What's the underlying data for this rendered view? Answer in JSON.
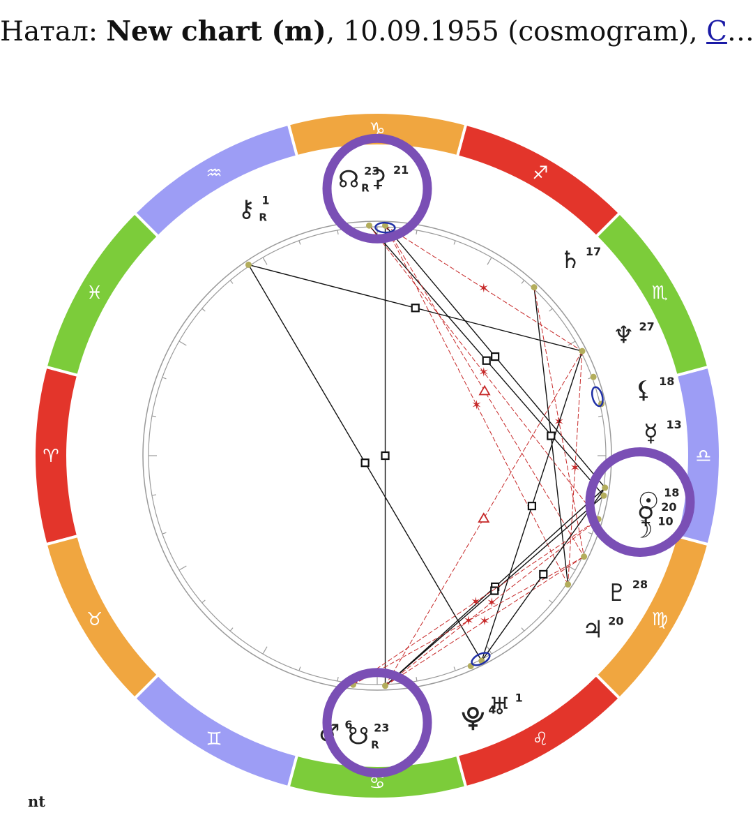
{
  "header": {
    "prefix": "Натал: ",
    "chart_name": "New chart (m)",
    "details": ", 10.09.1955 (cosmogram), ",
    "link": "С",
    "ellipsis": "…"
  },
  "footer": {
    "text": "nt"
  },
  "colors": {
    "fire": "#e3352b",
    "earth": "#f0a640",
    "air": "#9d9df5",
    "water": "#7ccc3a",
    "highlight": "#7a4fb5",
    "aspect_tense": "#111111",
    "aspect_harmonic": "#c62828",
    "planet_dot": "#b3ad5c",
    "conjunction_oval": "#1f2fa6"
  },
  "zodiac": [
    {
      "sign": "Aries",
      "glyph": "♈",
      "element": "fire",
      "angle": 180
    },
    {
      "sign": "Taurus",
      "glyph": "♉",
      "element": "earth",
      "angle": 210
    },
    {
      "sign": "Gemini",
      "glyph": "♊",
      "element": "air",
      "angle": 240
    },
    {
      "sign": "Cancer",
      "glyph": "♋",
      "element": "water",
      "angle": 270
    },
    {
      "sign": "Leo",
      "glyph": "♌",
      "element": "fire",
      "angle": 300
    },
    {
      "sign": "Virgo",
      "glyph": "♍",
      "element": "earth",
      "angle": 330
    },
    {
      "sign": "Libra",
      "glyph": "♎",
      "element": "air",
      "angle": 0
    },
    {
      "sign": "Scorpio",
      "glyph": "♏",
      "element": "water",
      "angle": 30
    },
    {
      "sign": "Sagittarius",
      "glyph": "♐",
      "element": "fire",
      "angle": 60
    },
    {
      "sign": "Capricorn",
      "glyph": "♑",
      "element": "earth",
      "angle": 90
    },
    {
      "sign": "Aquarius",
      "glyph": "♒",
      "element": "air",
      "angle": 120
    },
    {
      "sign": "Pisces",
      "glyph": "♓",
      "element": "water",
      "angle": 150
    }
  ],
  "planets": [
    {
      "name": "north-node",
      "glyph": "☊",
      "degree": "23",
      "retro": "R",
      "angle": 92,
      "label_angle": 95
    },
    {
      "name": "ceres",
      "glyph": "⚳",
      "degree": "21",
      "retro": "",
      "angle": 88,
      "label_angle": 89
    },
    {
      "name": "chiron",
      "glyph": "⚷",
      "degree": "1",
      "retro": "R",
      "angle": 124,
      "label_angle": 117
    },
    {
      "name": "saturn",
      "glyph": "♄",
      "degree": "17",
      "retro": "",
      "angle": 47,
      "label_angle": 45
    },
    {
      "name": "neptune",
      "glyph": "♆",
      "degree": "27",
      "retro": "",
      "angle": 27,
      "label_angle": 26
    },
    {
      "name": "lilith",
      "glyph": "⚸",
      "degree": "18",
      "retro": "",
      "angle": 20,
      "label_angle": 14
    },
    {
      "name": "mercury",
      "glyph": "☿",
      "degree": "13",
      "retro": "",
      "angle": 13,
      "label_angle": 5
    },
    {
      "name": "sun",
      "glyph": "☉",
      "degree": "18",
      "retro": "",
      "angle": 352,
      "label_angle": 351
    },
    {
      "name": "venus",
      "glyph": "♀",
      "degree": "20",
      "retro": "",
      "angle": 350,
      "label_angle": 348
    },
    {
      "name": "moon",
      "glyph": "☽",
      "degree": "10",
      "retro": "",
      "angle": 344,
      "label_angle": 345
    },
    {
      "name": "pluto",
      "glyph": "♇",
      "degree": "28",
      "retro": "",
      "angle": 334,
      "label_angle": 331
    },
    {
      "name": "jupiter",
      "glyph": "♃",
      "degree": "20",
      "retro": "",
      "angle": 326,
      "label_angle": 322
    },
    {
      "name": "uranus",
      "glyph": "♅",
      "degree": "1",
      "retro": "",
      "angle": 297,
      "label_angle": 297
    },
    {
      "name": "proserpina",
      "glyph": "⯓",
      "degree": "4",
      "retro": "",
      "angle": 294,
      "label_angle": 291
    },
    {
      "name": "south-node",
      "glyph": "☋",
      "degree": "23",
      "retro": "R",
      "angle": 272,
      "label_angle": 267
    },
    {
      "name": "mars",
      "glyph": "♂",
      "degree": "6",
      "retro": "",
      "angle": 264,
      "label_angle": 261
    }
  ],
  "aspects": [
    {
      "from": "chiron",
      "to": "neptune",
      "type": "square"
    },
    {
      "from": "chiron",
      "to": "uranus",
      "type": "opposition"
    },
    {
      "from": "ceres",
      "to": "south-node",
      "type": "opposition"
    },
    {
      "from": "ceres",
      "to": "sun",
      "type": "square"
    },
    {
      "from": "north-node",
      "to": "venus",
      "type": "square"
    },
    {
      "from": "ceres",
      "to": "jupiter",
      "type": "sextile"
    },
    {
      "from": "ceres",
      "to": "pluto",
      "type": "trine"
    },
    {
      "from": "north-node",
      "to": "moon",
      "type": "sextile"
    },
    {
      "from": "ceres",
      "to": "neptune",
      "type": "sextile"
    },
    {
      "from": "saturn",
      "to": "jupiter",
      "type": "square"
    },
    {
      "from": "saturn",
      "to": "pluto",
      "type": "sextile"
    },
    {
      "from": "neptune",
      "to": "uranus",
      "type": "square"
    },
    {
      "from": "neptune",
      "to": "south-node",
      "type": "trine"
    },
    {
      "from": "neptune",
      "to": "jupiter",
      "type": "sextile"
    },
    {
      "from": "south-node",
      "to": "sun",
      "type": "square"
    },
    {
      "from": "south-node",
      "to": "venus",
      "type": "square"
    },
    {
      "from": "south-node",
      "to": "moon",
      "type": "sextile"
    },
    {
      "from": "south-node",
      "to": "pluto",
      "type": "sextile"
    },
    {
      "from": "mars",
      "to": "moon",
      "type": "sextile"
    },
    {
      "from": "mars",
      "to": "pluto",
      "type": "sextile"
    },
    {
      "from": "sun",
      "to": "uranus",
      "type": "square"
    }
  ],
  "conjunction_marks": [
    {
      "name": "ceres-conjunction-mark",
      "angle": 88
    },
    {
      "name": "mercury-conjunction-mark",
      "angle": 15
    },
    {
      "name": "uranus-conjunction-mark",
      "angle": 297
    }
  ],
  "highlights": [
    {
      "name": "north-node-highlight",
      "angle": 90,
      "radius_ratio": 1.16
    },
    {
      "name": "sun-venus-highlight",
      "angle": 350,
      "radius_ratio": 1.16
    },
    {
      "name": "south-node-highlight",
      "angle": 270,
      "radius_ratio": 1.16
    }
  ]
}
